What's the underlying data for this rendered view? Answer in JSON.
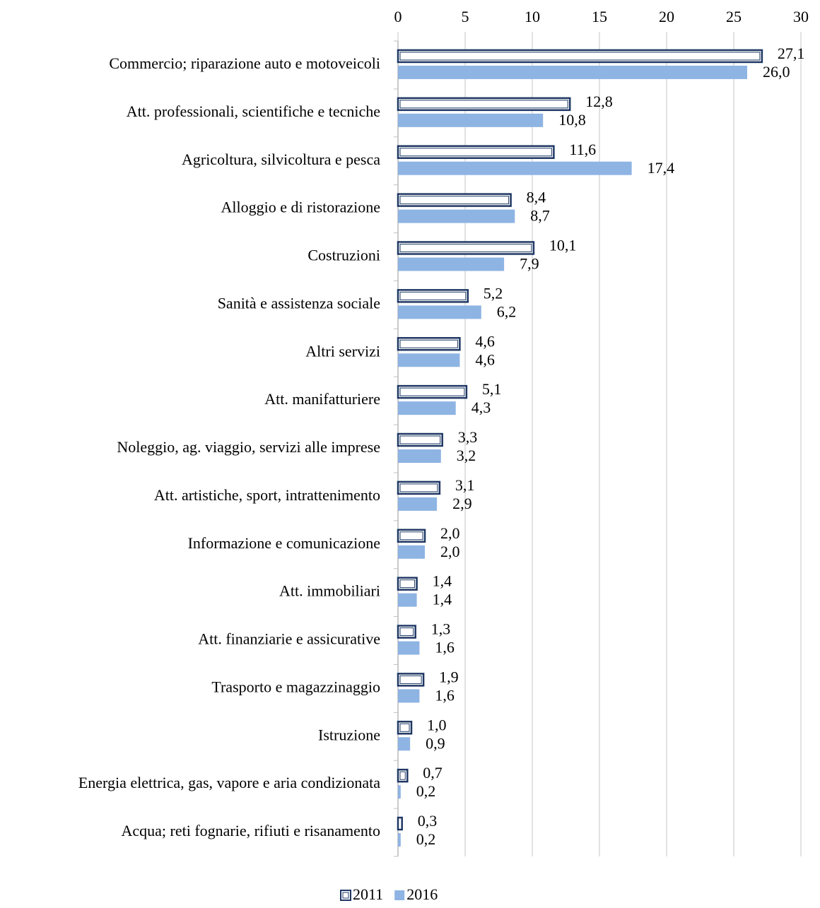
{
  "chart_data": {
    "type": "bar",
    "orientation": "horizontal",
    "categories": [
      "Commercio; riparazione auto e motoveicoli",
      "Att. professionali, scientifiche e tecniche",
      "Agricoltura, silvicoltura e pesca",
      "Alloggio e di ristorazione",
      "Costruzioni",
      "Sanità e assistenza sociale",
      "Altri servizi",
      "Att. manifatturiere",
      "Noleggio, ag. viaggio, servizi alle imprese",
      "Att. artistiche, sport, intrattenimento",
      "Informazione e comunicazione",
      "Att. immobiliari",
      "Att. finanziarie e assicurative",
      "Trasporto e magazzinaggio",
      "Istruzione",
      "Energia elettrica, gas, vapore e aria condizionata",
      "Acqua; reti fognarie, rifiuti e risanamento"
    ],
    "series": [
      {
        "name": "2011",
        "color": "#ffffff",
        "edge_color": "#1f3864",
        "values": [
          27.1,
          12.8,
          11.6,
          8.4,
          10.1,
          5.2,
          4.6,
          5.1,
          3.3,
          3.1,
          2.0,
          1.4,
          1.3,
          1.9,
          1.0,
          0.7,
          0.3
        ],
        "value_labels": [
          "27,1",
          "12,8",
          "11,6",
          "8,4",
          "10,1",
          "5,2",
          "4,6",
          "5,1",
          "3,3",
          "3,1",
          "2,0",
          "1,4",
          "1,3",
          "1,9",
          "1,0",
          "0,7",
          "0,3"
        ]
      },
      {
        "name": "2016",
        "color": "#8eb4e3",
        "values": [
          26.0,
          10.8,
          17.4,
          8.7,
          7.9,
          6.2,
          4.6,
          4.3,
          3.2,
          2.9,
          2.0,
          1.4,
          1.6,
          1.6,
          0.9,
          0.2,
          0.2
        ],
        "value_labels": [
          "26,0",
          "10,8",
          "17,4",
          "8,7",
          "7,9",
          "6,2",
          "4,6",
          "4,3",
          "3,2",
          "2,9",
          "2,0",
          "1,4",
          "1,6",
          "1,6",
          "0,9",
          "0,2",
          "0,2"
        ]
      }
    ],
    "xlim": [
      0,
      30
    ],
    "xticks": [
      0,
      5,
      10,
      15,
      20,
      25,
      30
    ],
    "grid": true,
    "legend": "bottom"
  }
}
